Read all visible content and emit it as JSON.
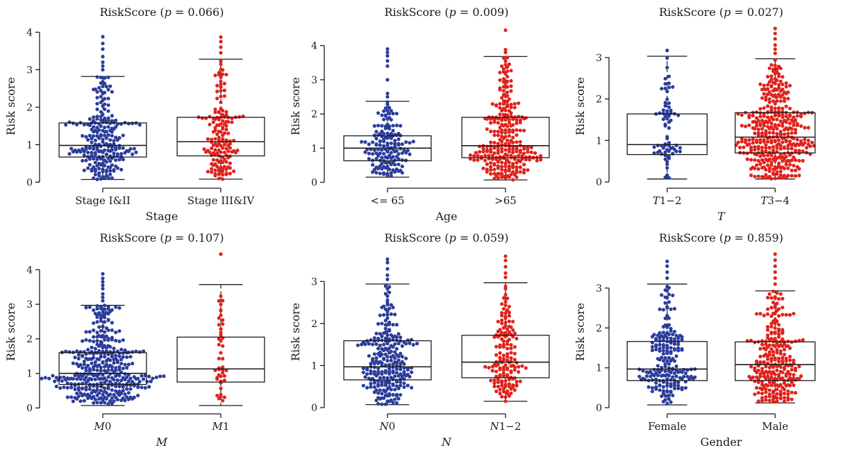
{
  "figure": {
    "colors": {
      "group1": "#2b3d9c",
      "group2": "#e0231c",
      "box": "#1a1a1a"
    },
    "marker": "circle"
  },
  "chart_data": [
    {
      "type": "boxplot",
      "title_prefix": "RiskScore (",
      "title_p": "p",
      "title_suffix": " = 0.066)",
      "xlabel": "Stage",
      "xlabel_italic": false,
      "ylabel": "Risk score",
      "ylim": [
        -0.05,
        4.1
      ],
      "yticks": [
        "0",
        "1",
        "2",
        "3",
        "4"
      ],
      "categories": [
        {
          "name": "",
          "label_main": "Stage I&II",
          "label_suffix": "",
          "italic": false,
          "n": 230,
          "min": 0.07,
          "q1": 0.67,
          "median": 0.98,
          "q3": 1.58,
          "max": 2.82,
          "outliers": [
            3.0,
            3.1,
            3.2,
            3.35,
            3.55,
            3.7,
            3.88
          ]
        },
        {
          "name": "",
          "label_main": "Stage III&IV",
          "label_suffix": "",
          "italic": false,
          "n": 150,
          "min": 0.08,
          "q1": 0.7,
          "median": 1.08,
          "q3": 1.73,
          "max": 3.28,
          "outliers": [
            3.45,
            3.6,
            3.75,
            3.87
          ]
        }
      ]
    },
    {
      "type": "boxplot",
      "title_prefix": "RiskScore (",
      "title_p": "p",
      "title_suffix": " = 0.009)",
      "xlabel": "Age",
      "xlabel_italic": false,
      "ylabel": "Risk score",
      "ylim": [
        -0.05,
        4.5
      ],
      "yticks": [
        "0",
        "1",
        "2",
        "3",
        "4"
      ],
      "categories": [
        {
          "name": "",
          "label_main": "<= 65",
          "label_suffix": "",
          "italic": false,
          "n": 150,
          "min": 0.15,
          "q1": 0.63,
          "median": 1.0,
          "q3": 1.36,
          "max": 2.37,
          "outliers": [
            2.5,
            2.6,
            3.0,
            3.4,
            3.55,
            3.7,
            3.8,
            3.9
          ]
        },
        {
          "name": "",
          "label_main": ">65",
          "label_suffix": "",
          "italic": false,
          "n": 270,
          "min": 0.07,
          "q1": 0.72,
          "median": 1.07,
          "q3": 1.9,
          "max": 3.68,
          "outliers": [
            3.8,
            3.88,
            4.45
          ]
        }
      ]
    },
    {
      "type": "boxplot",
      "title_prefix": "RiskScore (",
      "title_p": "p",
      "title_suffix": " = 0.027)",
      "xlabel": "T",
      "xlabel_italic": true,
      "ylabel": "Risk score",
      "ylim": [
        -0.05,
        3.7
      ],
      "yticks": [
        "0",
        "1",
        "2",
        "3"
      ],
      "categories": [
        {
          "name": "",
          "label_main": "T",
          "label_suffix": "1−2",
          "italic": true,
          "n": 70,
          "min": 0.07,
          "q1": 0.66,
          "median": 0.9,
          "q3": 1.64,
          "max": 3.03,
          "outliers": [
            3.17
          ]
        },
        {
          "name": "",
          "label_main": "T",
          "label_suffix": "3−4",
          "italic": true,
          "n": 380,
          "min": 0.07,
          "q1": 0.7,
          "median": 1.08,
          "q3": 1.67,
          "max": 2.97,
          "outliers": [
            3.1,
            3.2,
            3.3,
            3.45,
            3.58,
            3.7
          ]
        }
      ]
    },
    {
      "type": "boxplot",
      "title_prefix": "RiskScore (",
      "title_p": "p",
      "title_suffix": " = 0.107)",
      "xlabel": "M",
      "xlabel_italic": true,
      "ylabel": "Risk score",
      "ylim": [
        -0.05,
        4.45
      ],
      "yticks": [
        "0",
        "1",
        "2",
        "3",
        "4"
      ],
      "categories": [
        {
          "name": "",
          "label_main": "M",
          "label_suffix": "0",
          "italic": true,
          "n": 380,
          "min": 0.07,
          "q1": 0.68,
          "median": 1.0,
          "q3": 1.6,
          "max": 2.97,
          "outliers": [
            3.1,
            3.2,
            3.3,
            3.45,
            3.55,
            3.65,
            3.75,
            3.88
          ]
        },
        {
          "name": "",
          "label_main": "M",
          "label_suffix": "1",
          "italic": true,
          "n": 45,
          "min": 0.07,
          "q1": 0.75,
          "median": 1.13,
          "q3": 2.05,
          "max": 3.57,
          "outliers": [
            4.45
          ]
        }
      ]
    },
    {
      "type": "boxplot",
      "title_prefix": "RiskScore (",
      "title_p": "p",
      "title_suffix": " = 0.059)",
      "xlabel": "N",
      "xlabel_italic": true,
      "ylabel": "Risk score",
      "ylim": [
        -0.05,
        3.65
      ],
      "yticks": [
        "0",
        "1",
        "2",
        "3"
      ],
      "categories": [
        {
          "name": "",
          "label_main": "N",
          "label_suffix": "0",
          "italic": true,
          "n": 250,
          "min": 0.07,
          "q1": 0.66,
          "median": 0.97,
          "q3": 1.59,
          "max": 2.94,
          "outliers": [
            3.05,
            3.15,
            3.3,
            3.45,
            3.53
          ]
        },
        {
          "name": "",
          "label_main": "N",
          "label_suffix": "1−2",
          "italic": true,
          "n": 150,
          "min": 0.15,
          "q1": 0.71,
          "median": 1.08,
          "q3": 1.72,
          "max": 2.97,
          "outliers": [
            3.1,
            3.2,
            3.35,
            3.5,
            3.6
          ]
        }
      ]
    },
    {
      "type": "boxplot",
      "title_prefix": "RiskScore (",
      "title_p": "p",
      "title_suffix": " = 0.859)",
      "xlabel": "Gender",
      "xlabel_italic": false,
      "ylabel": "Risk score",
      "ylim": [
        -0.05,
        3.85
      ],
      "yticks": [
        "0",
        "1",
        "2",
        "3"
      ],
      "categories": [
        {
          "name": "",
          "label_main": "Female",
          "label_suffix": "",
          "italic": false,
          "n": 200,
          "min": 0.07,
          "q1": 0.68,
          "median": 0.97,
          "q3": 1.66,
          "max": 3.1,
          "outliers": [
            3.25,
            3.4,
            3.55,
            3.67
          ]
        },
        {
          "name": "",
          "label_main": "Male",
          "label_suffix": "",
          "italic": false,
          "n": 260,
          "min": 0.12,
          "q1": 0.68,
          "median": 1.08,
          "q3": 1.65,
          "max": 2.93,
          "outliers": [
            3.1,
            3.25,
            3.4,
            3.55,
            3.7,
            3.85
          ]
        }
      ]
    }
  ]
}
